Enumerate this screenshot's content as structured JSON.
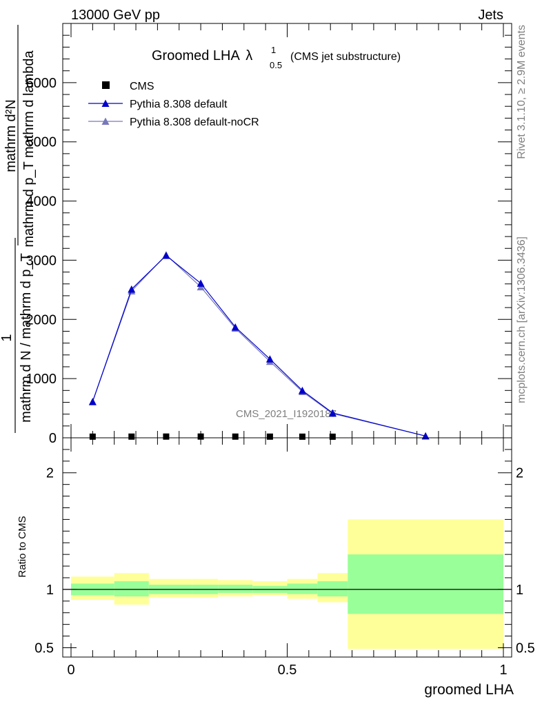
{
  "header": {
    "energy_label": "13000 GeV pp",
    "category": "Jets"
  },
  "side_labels": {
    "rivet": "Rivet 3.1.10, ≥ 2.9M events",
    "mcplots": "mcplots.cern.ch [arXiv:1306.3436]"
  },
  "watermark": "CMS_2021_I1920187",
  "chart_data": [
    {
      "type": "line",
      "title_main": "Groomed LHA",
      "title_lambda": "λ",
      "title_sup": "1",
      "title_sub": "0.5",
      "title_note": "(CMS jet substructure)",
      "ylabel_lines": [
        "mathrm d²N",
        "mathrm d p_T mathrm d lambda",
        "1",
        "mathrm d N / mathrm d p_T"
      ],
      "ylim": [
        0,
        7000
      ],
      "yticks": [
        0,
        1000,
        2000,
        3000,
        4000,
        5000,
        6000
      ],
      "ytick_labels": [
        "0",
        "1000",
        "2000",
        "3000",
        "4000",
        "5000",
        "6000"
      ],
      "xlim": [
        0,
        1
      ],
      "bins": [
        [
          0,
          0.1
        ],
        [
          0.1,
          0.18
        ],
        [
          0.18,
          0.28
        ],
        [
          0.28,
          0.34
        ],
        [
          0.34,
          0.42
        ],
        [
          0.42,
          0.5
        ],
        [
          0.5,
          0.57
        ],
        [
          0.57,
          0.64
        ],
        [
          0.64,
          1.0
        ]
      ],
      "legend_position": "top-left",
      "series": [
        {
          "name": "CMS",
          "color": "#000000",
          "marker": "square",
          "x": [
            0.05,
            0.14,
            0.22,
            0.3,
            0.38,
            0.46,
            0.535,
            0.605
          ],
          "y": [
            2.1,
            2.8,
            3.4,
            3.6,
            2.9,
            2.3,
            1.7,
            1.1
          ]
        },
        {
          "name": "Pythia 8.308 default",
          "color": "#0000cc",
          "marker": "triangle",
          "x": [
            0.05,
            0.14,
            0.22,
            0.3,
            0.38,
            0.46,
            0.535,
            0.605,
            0.82
          ],
          "y": [
            610,
            2510,
            3080,
            2610,
            1870,
            1330,
            800,
            420,
            30
          ]
        },
        {
          "name": "Pythia 8.308 default-noCR",
          "color": "#7777bb",
          "marker": "triangle",
          "x": [
            0.05,
            0.14,
            0.22,
            0.3,
            0.38,
            0.46,
            0.535,
            0.605,
            0.82
          ],
          "y": [
            610,
            2480,
            3090,
            2550,
            1850,
            1290,
            780,
            410,
            30
          ]
        }
      ]
    },
    {
      "type": "area",
      "ylabel": "Ratio to CMS",
      "xlabel": "groomed LHA",
      "xlim": [
        0,
        1
      ],
      "xtick_labels": [
        "0",
        "0.5",
        "1"
      ],
      "xticks": [
        0,
        0.5,
        1
      ],
      "ylim": [
        0.42,
        2.3
      ],
      "yticks": [
        0.5,
        1,
        2
      ],
      "ytick_labels": [
        "0.5",
        "1",
        "2"
      ],
      "reference_line": 1,
      "bands": {
        "stat_color": "#99ff99",
        "total_color": "#ffff99",
        "bins": [
          [
            0,
            0.1
          ],
          [
            0.1,
            0.18
          ],
          [
            0.18,
            0.28
          ],
          [
            0.28,
            0.34
          ],
          [
            0.34,
            0.42
          ],
          [
            0.42,
            0.5
          ],
          [
            0.5,
            0.57
          ],
          [
            0.57,
            0.64
          ],
          [
            0.64,
            1.0
          ]
        ],
        "total_lo": [
          0.91,
          0.87,
          0.93,
          0.93,
          0.94,
          0.95,
          0.92,
          0.89,
          0.49
        ],
        "total_hi": [
          1.11,
          1.14,
          1.09,
          1.09,
          1.08,
          1.07,
          1.09,
          1.14,
          1.6
        ],
        "stat_lo": [
          0.95,
          0.94,
          0.96,
          0.96,
          0.97,
          0.97,
          0.96,
          0.94,
          0.79
        ],
        "stat_hi": [
          1.05,
          1.07,
          1.04,
          1.04,
          1.04,
          1.03,
          1.05,
          1.07,
          1.3
        ]
      }
    }
  ]
}
